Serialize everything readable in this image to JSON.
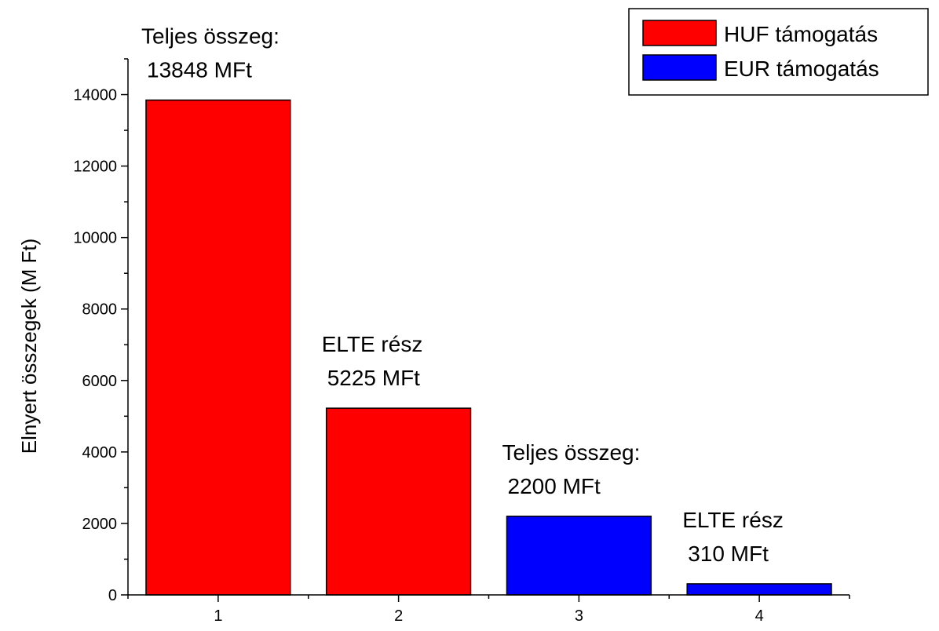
{
  "chart_data": {
    "type": "bar",
    "categories": [
      "1",
      "2",
      "3",
      "4"
    ],
    "values": [
      13848,
      5225,
      2200,
      310
    ],
    "bar_series": [
      "HUF támogatás",
      "HUF támogatás",
      "EUR támogatás",
      "EUR támogatás"
    ],
    "series": [
      {
        "name": "HUF támogatás",
        "color": "#ff0000",
        "x": [
          "1",
          "2"
        ],
        "values": [
          13848,
          5225
        ]
      },
      {
        "name": "EUR támogatás",
        "color": "#0000ff",
        "x": [
          "3",
          "4"
        ],
        "values": [
          2200,
          310
        ]
      }
    ],
    "bar_labels": [
      [
        "Teljes összeg:",
        "13848 MFt"
      ],
      [
        "ELTE rész",
        "5225 MFt"
      ],
      [
        "Teljes összeg:",
        "2200 MFt"
      ],
      [
        "ELTE rész",
        "310 MFt"
      ]
    ],
    "title": "",
    "xlabel": "",
    "ylabel": "Elnyert összegek (M Ft)",
    "ylim": [
      0,
      15000
    ],
    "xlim": [
      0.5,
      4.5
    ],
    "y_ticks": [
      0,
      2000,
      4000,
      6000,
      8000,
      10000,
      12000,
      14000
    ],
    "x_ticks": [
      "1",
      "2",
      "3",
      "4"
    ],
    "grid": false,
    "legend_position": "top-right"
  }
}
